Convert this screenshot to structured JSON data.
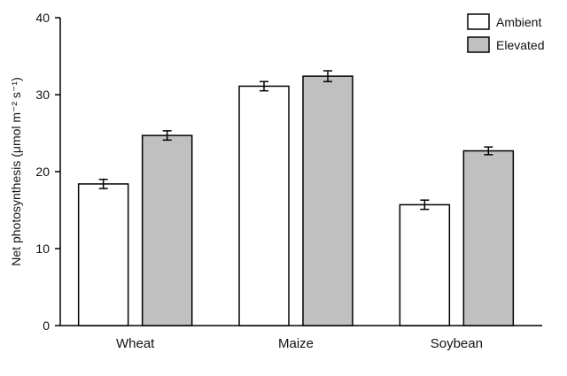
{
  "chart_data": {
    "type": "bar",
    "title": "",
    "xlabel": "",
    "ylabel": "Net photosynthesis (μmol m⁻² s⁻¹)",
    "categories": [
      "Wheat",
      "Maize",
      "Soybean"
    ],
    "series": [
      {
        "name": "Ambient",
        "color": "#ffffff",
        "values": [
          18.4,
          31.1,
          15.7
        ],
        "errors": [
          0.6,
          0.6,
          0.6
        ]
      },
      {
        "name": "Elevated",
        "color": "#c0c0c0",
        "values": [
          24.7,
          32.4,
          22.7
        ],
        "errors": [
          0.6,
          0.7,
          0.5
        ]
      }
    ],
    "ylim": [
      0,
      40
    ],
    "yticks": [
      0,
      10,
      20,
      30,
      40
    ],
    "grid": false,
    "legend_position": "top-right",
    "error_bars": true
  }
}
